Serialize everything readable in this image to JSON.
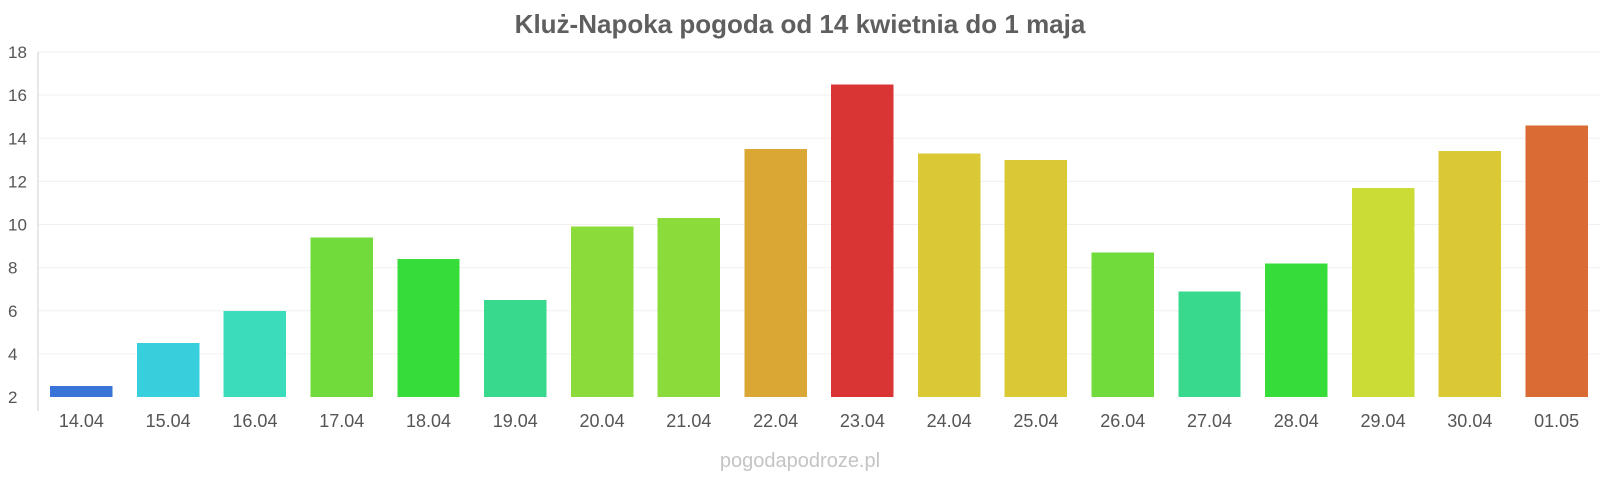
{
  "chart_data": {
    "type": "bar",
    "title": "Kluż-Napoka pogoda od 14 kwietnia do 1 maja",
    "xlabel": "",
    "ylabel": "",
    "ylim": [
      2,
      18
    ],
    "y_ticks": [
      "2",
      "4",
      "6",
      "8",
      "10",
      "12",
      "14",
      "16",
      "18"
    ],
    "grid": true,
    "legend": "none",
    "categories": [
      "14.04",
      "15.04",
      "16.04",
      "17.04",
      "18.04",
      "19.04",
      "20.04",
      "21.04",
      "22.04",
      "23.04",
      "24.04",
      "25.04",
      "26.04",
      "27.04",
      "28.04",
      "29.04",
      "30.04",
      "01.05"
    ],
    "values": [
      2.5,
      4.5,
      6.0,
      9.4,
      8.4,
      6.5,
      9.9,
      10.3,
      13.5,
      16.5,
      13.3,
      13.0,
      8.7,
      6.9,
      8.2,
      11.7,
      13.4,
      14.6
    ],
    "bar_colors": [
      "#3a74d9",
      "#38cfdc",
      "#3bdcbc",
      "#70db3a",
      "#35dc3a",
      "#38d98c",
      "#8bdc3a",
      "#8bdc3a",
      "#daa735",
      "#da3535",
      "#dac935",
      "#dac935",
      "#70db3a",
      "#38d98c",
      "#35dc3a",
      "#cadc35",
      "#dac935",
      "#da6b35"
    ]
  },
  "watermark": "pogodapodroze.pl"
}
